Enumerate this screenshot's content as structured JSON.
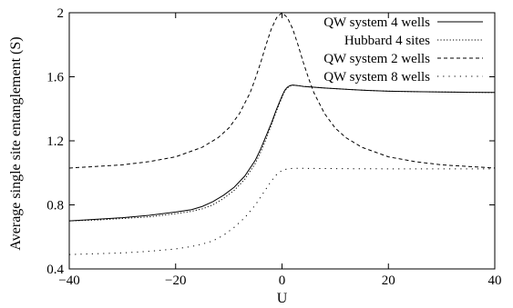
{
  "chart_data": {
    "type": "line",
    "xlabel": "U",
    "ylabel": "Average single site entanglement (S)",
    "xlim": [
      -40,
      40
    ],
    "ylim": [
      0.4,
      2.0
    ],
    "xticks": [
      -40,
      -20,
      0,
      20,
      40
    ],
    "xtick_labels": [
      "−40",
      "−20",
      "0",
      "20",
      "40"
    ],
    "yticks": [
      0.4,
      0.8,
      1.2,
      1.6,
      2.0
    ],
    "ytick_labels": [
      "0.4",
      "0.8",
      "1.2",
      "1.6",
      "2"
    ],
    "grid": false,
    "legend_position": "top-right",
    "series": [
      {
        "name": "QW system 4 wells",
        "style": "solid",
        "x": [
          -40,
          -35,
          -30,
          -25,
          -20,
          -17,
          -15,
          -13,
          -11,
          -9,
          -7,
          -5,
          -4,
          -3,
          -2,
          -1,
          0,
          0.5,
          1,
          1.5,
          2,
          3,
          4,
          6,
          8,
          12,
          16,
          20,
          25,
          30,
          35,
          40
        ],
        "y": [
          0.7,
          0.71,
          0.72,
          0.735,
          0.755,
          0.77,
          0.79,
          0.82,
          0.86,
          0.91,
          0.98,
          1.08,
          1.15,
          1.23,
          1.31,
          1.4,
          1.48,
          1.515,
          1.535,
          1.545,
          1.548,
          1.545,
          1.54,
          1.535,
          1.53,
          1.522,
          1.515,
          1.51,
          1.507,
          1.505,
          1.503,
          1.502
        ]
      },
      {
        "name": "Hubbard 4 sites",
        "style": "dotted",
        "x": [
          -40,
          -35,
          -30,
          -25,
          -20,
          -17,
          -15,
          -13,
          -11,
          -9,
          -7,
          -5,
          -4,
          -3,
          -2,
          -1,
          0,
          0.5,
          1,
          1.5,
          2,
          3,
          4,
          6,
          8,
          12,
          16,
          20,
          25,
          30,
          35,
          40
        ],
        "y": [
          0.7,
          0.705,
          0.715,
          0.725,
          0.745,
          0.76,
          0.775,
          0.8,
          0.84,
          0.89,
          0.96,
          1.06,
          1.13,
          1.21,
          1.3,
          1.39,
          1.47,
          1.51,
          1.53,
          1.542,
          1.548,
          1.545,
          1.54,
          1.535,
          1.53,
          1.522,
          1.515,
          1.51,
          1.507,
          1.505,
          1.503,
          1.502
        ]
      },
      {
        "name": "QW system 2 wells",
        "style": "dashed",
        "x": [
          -40,
          -35,
          -30,
          -25,
          -20,
          -15,
          -12,
          -10,
          -8,
          -6,
          -5,
          -4,
          -3,
          -2,
          -1,
          0,
          1,
          2,
          3,
          4,
          5,
          6,
          8,
          10,
          12,
          15,
          20,
          25,
          30,
          35,
          40
        ],
        "y": [
          1.03,
          1.04,
          1.05,
          1.07,
          1.1,
          1.16,
          1.22,
          1.28,
          1.37,
          1.5,
          1.59,
          1.69,
          1.8,
          1.9,
          1.97,
          2.0,
          1.97,
          1.9,
          1.8,
          1.69,
          1.59,
          1.5,
          1.37,
          1.28,
          1.22,
          1.16,
          1.1,
          1.07,
          1.05,
          1.04,
          1.03
        ]
      },
      {
        "name": "QW system 8 wells",
        "style": "dash-dot",
        "x": [
          -40,
          -35,
          -30,
          -25,
          -20,
          -17,
          -15,
          -13,
          -11,
          -9,
          -7,
          -5,
          -4,
          -3,
          -2,
          -1,
          0,
          0.5,
          1,
          2,
          4,
          8,
          12,
          20,
          30,
          40
        ],
        "y": [
          0.49,
          0.495,
          0.5,
          0.51,
          0.525,
          0.54,
          0.555,
          0.575,
          0.61,
          0.66,
          0.72,
          0.8,
          0.85,
          0.9,
          0.95,
          0.99,
          1.015,
          1.02,
          1.025,
          1.028,
          1.028,
          1.027,
          1.026,
          1.025,
          1.025,
          1.025
        ]
      }
    ]
  }
}
